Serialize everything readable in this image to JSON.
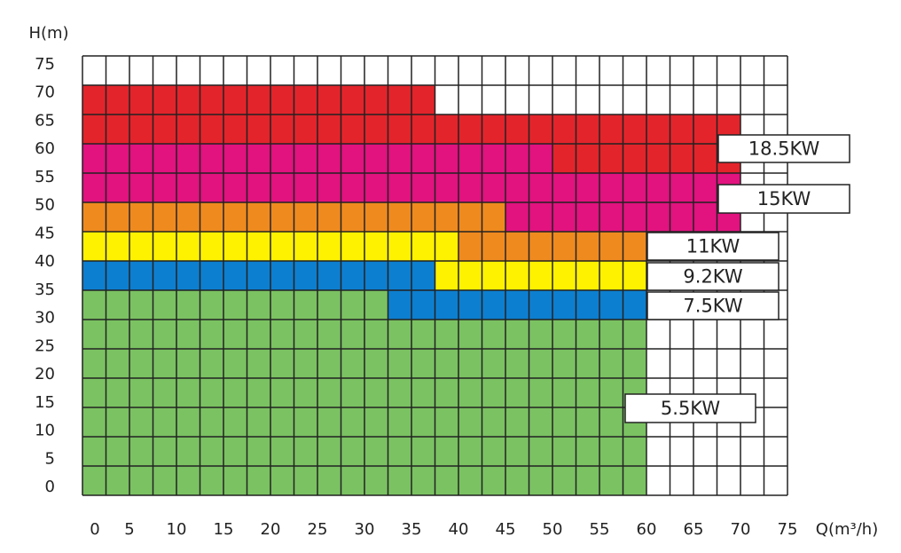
{
  "chart_data": {
    "type": "region",
    "ylabel": "H(m)",
    "xlabel": "Q(m³/h)",
    "xlim": [
      0,
      75
    ],
    "ylim": [
      0,
      75
    ],
    "xticks": [
      0,
      5,
      10,
      15,
      20,
      25,
      30,
      35,
      40,
      45,
      50,
      55,
      60,
      65,
      70,
      75
    ],
    "yticks": [
      0,
      5,
      10,
      15,
      20,
      25,
      30,
      35,
      40,
      45,
      50,
      55,
      60,
      65,
      70,
      75
    ],
    "grid": true,
    "series": [
      {
        "name": "18.5KW",
        "color": "#e3242b",
        "blocks": [
          {
            "x": [
              0,
              37.5
            ],
            "y": [
              65,
              70
            ]
          },
          {
            "x": [
              0,
              70
            ],
            "y": [
              60,
              65
            ]
          },
          {
            "x": [
              50,
              70
            ],
            "y": [
              55,
              60
            ]
          }
        ]
      },
      {
        "name": "15KW",
        "color": "#e2127f",
        "blocks": [
          {
            "x": [
              0,
              50
            ],
            "y": [
              55,
              60
            ]
          },
          {
            "x": [
              0,
              70
            ],
            "y": [
              50,
              55
            ]
          },
          {
            "x": [
              45,
              70
            ],
            "y": [
              45,
              50
            ]
          }
        ]
      },
      {
        "name": "11KW",
        "color": "#ef8a1f",
        "blocks": [
          {
            "x": [
              0,
              45
            ],
            "y": [
              45,
              50
            ]
          },
          {
            "x": [
              40,
              60
            ],
            "y": [
              40,
              45
            ]
          }
        ]
      },
      {
        "name": "9.2KW",
        "color": "#fff200",
        "blocks": [
          {
            "x": [
              0,
              40
            ],
            "y": [
              40,
              45
            ]
          },
          {
            "x": [
              37.5,
              60
            ],
            "y": [
              35,
              40
            ]
          }
        ]
      },
      {
        "name": "7.5KW",
        "color": "#0d7fd0",
        "blocks": [
          {
            "x": [
              0,
              37.5
            ],
            "y": [
              35,
              40
            ]
          },
          {
            "x": [
              32.5,
              60
            ],
            "y": [
              30,
              35
            ]
          }
        ]
      },
      {
        "name": "5.5KW",
        "color": "#7bc262",
        "blocks": [
          {
            "x": [
              0,
              32.5
            ],
            "y": [
              0,
              35
            ]
          },
          {
            "x": [
              32.5,
              60
            ],
            "y": [
              0,
              30
            ]
          }
        ]
      }
    ]
  }
}
